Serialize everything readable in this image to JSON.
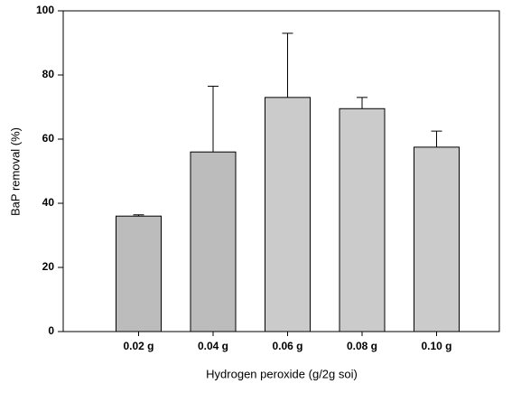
{
  "chart_data": {
    "type": "bar",
    "x_label": "Hydrogen peroxide (g/2g soi)",
    "y_label": "BaP removal (%)",
    "categories": [
      "0.02 g",
      "0.04 g",
      "0.06 g",
      "0.08 g",
      "0.10 g"
    ],
    "values": [
      36,
      56,
      73,
      69.5,
      57.5
    ],
    "errors": [
      0.4,
      20.5,
      20,
      3.5,
      5
    ],
    "colors": [
      "#bcbcbc",
      "#bcbcbc",
      "#cbcbcb",
      "#cbcbcb",
      "#cbcbcb"
    ],
    "ylim": [
      0,
      100
    ],
    "yticks": [
      0,
      20,
      40,
      60,
      80,
      100
    ],
    "grid": false
  }
}
